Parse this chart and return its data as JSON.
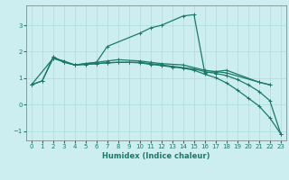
{
  "xlabel": "Humidex (Indice chaleur)",
  "background_color": "#cceef0",
  "grid_color": "#aadddd",
  "line_color": "#1a7a6a",
  "xlim": [
    -0.5,
    23.5
  ],
  "ylim": [
    -1.35,
    3.75
  ],
  "xticks": [
    0,
    1,
    2,
    3,
    4,
    5,
    6,
    7,
    8,
    9,
    10,
    11,
    12,
    13,
    14,
    15,
    16,
    17,
    18,
    19,
    20,
    21,
    22,
    23
  ],
  "yticks": [
    -1,
    0,
    1,
    2,
    3
  ],
  "s1_x": [
    0,
    1,
    2,
    3,
    4,
    5,
    6,
    7,
    10,
    11,
    12,
    14,
    15,
    16,
    17,
    18,
    21,
    22
  ],
  "s1_y": [
    0.75,
    0.9,
    1.8,
    1.6,
    1.5,
    1.55,
    1.6,
    2.2,
    2.7,
    2.9,
    3.0,
    3.35,
    3.4,
    1.2,
    1.25,
    1.3,
    0.85,
    0.75
  ],
  "s2_x": [
    0,
    2,
    3,
    4,
    5,
    6,
    7,
    8,
    10,
    11,
    12,
    14,
    16,
    17,
    18,
    21,
    22
  ],
  "s2_y": [
    0.75,
    1.75,
    1.65,
    1.5,
    1.55,
    1.6,
    1.65,
    1.7,
    1.65,
    1.6,
    1.55,
    1.5,
    1.3,
    1.25,
    1.2,
    0.85,
    0.75
  ],
  "s3_x": [
    0,
    1,
    2,
    3,
    4,
    5,
    6,
    7,
    8,
    9,
    10,
    11,
    12,
    13,
    14,
    15,
    16,
    17,
    18,
    19,
    20,
    21,
    22,
    23
  ],
  "s3_y": [
    0.75,
    0.9,
    1.75,
    1.62,
    1.5,
    1.52,
    1.55,
    1.58,
    1.6,
    1.6,
    1.6,
    1.55,
    1.5,
    1.45,
    1.4,
    1.35,
    1.25,
    1.18,
    1.1,
    0.95,
    0.75,
    0.5,
    0.15,
    -1.1
  ],
  "s4_x": [
    2,
    3,
    4,
    5,
    6,
    7,
    8,
    9,
    10,
    11,
    12,
    13,
    14,
    15,
    16,
    17,
    18,
    19,
    20,
    21,
    22,
    23
  ],
  "s4_y": [
    1.8,
    1.62,
    1.5,
    1.52,
    1.55,
    1.58,
    1.6,
    1.6,
    1.58,
    1.52,
    1.48,
    1.42,
    1.38,
    1.3,
    1.15,
    1.02,
    0.82,
    0.55,
    0.25,
    -0.05,
    -0.5,
    -1.1
  ]
}
